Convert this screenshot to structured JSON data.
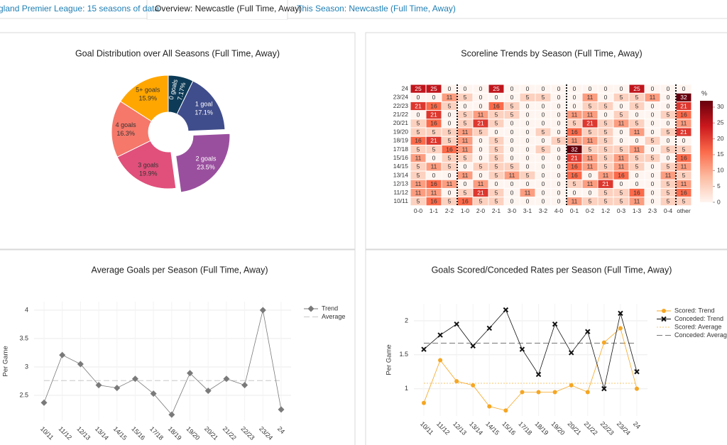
{
  "tabs": [
    "gland Premier League: 15 seasons of data",
    "Overview: Newcastle (Full Time, Away)",
    "This Season: Newcastle (Full Time, Away)"
  ],
  "chart_data": [
    {
      "type": "pie",
      "title": "Goal Distribution over All Seasons (Full Time, Away)",
      "categories": [
        "0 goals",
        "1 goal",
        "2 goals",
        "3 goals",
        "4 goals",
        "5+ goals"
      ],
      "values": [
        7.17,
        17.1,
        23.5,
        19.9,
        16.3,
        15.9
      ],
      "value_labels": [
        "7.17%",
        "17.1%",
        "23.5%",
        "19.9%",
        "16.3%",
        "15.9%"
      ],
      "colors": [
        "#0d3b57",
        "#404d8c",
        "#9a4f9e",
        "#e0507b",
        "#f5786a",
        "#ffa600"
      ]
    },
    {
      "type": "heatmap",
      "title": "Scoreline Trends by Season (Full Time, Away)",
      "x": [
        "0-0",
        "1-1",
        "2-2",
        "1-0",
        "2-0",
        "2-1",
        "3-0",
        "3-1",
        "3-2",
        "4-0",
        "0-1",
        "0-2",
        "1-2",
        "0-3",
        "1-3",
        "2-3",
        "0-4",
        "other"
      ],
      "y": [
        "24",
        "23/24",
        "22/23",
        "21/22",
        "20/21",
        "19/20",
        "18/19",
        "17/18",
        "15/16",
        "14/15",
        "13/14",
        "12/13",
        "11/12",
        "10/11"
      ],
      "values": [
        [
          25,
          25,
          0,
          0,
          0,
          25,
          0,
          0,
          0,
          0,
          0,
          0,
          0,
          0,
          25,
          0,
          0,
          0
        ],
        [
          0,
          0,
          11,
          5,
          0,
          0,
          0,
          5,
          5,
          0,
          0,
          11,
          0,
          5,
          5,
          11,
          0,
          32
        ],
        [
          21,
          16,
          5,
          0,
          0,
          16,
          5,
          0,
          0,
          0,
          0,
          5,
          5,
          0,
          5,
          0,
          0,
          21
        ],
        [
          0,
          21,
          0,
          5,
          11,
          5,
          5,
          0,
          0,
          0,
          11,
          11,
          0,
          5,
          0,
          0,
          5,
          16
        ],
        [
          5,
          16,
          0,
          5,
          21,
          5,
          0,
          0,
          0,
          0,
          5,
          21,
          5,
          11,
          5,
          0,
          0,
          11
        ],
        [
          5,
          5,
          5,
          11,
          5,
          0,
          0,
          0,
          5,
          0,
          16,
          5,
          5,
          0,
          11,
          0,
          5,
          21
        ],
        [
          16,
          21,
          5,
          11,
          0,
          5,
          0,
          0,
          0,
          5,
          11,
          11,
          5,
          0,
          0,
          5,
          0,
          0
        ],
        [
          5,
          5,
          16,
          11,
          0,
          5,
          0,
          0,
          5,
          0,
          32,
          5,
          5,
          5,
          11,
          0,
          5,
          5
        ],
        [
          11,
          0,
          5,
          5,
          0,
          5,
          0,
          0,
          0,
          0,
          21,
          11,
          5,
          11,
          5,
          5,
          0,
          16
        ],
        [
          5,
          11,
          5,
          0,
          5,
          5,
          5,
          0,
          0,
          0,
          16,
          11,
          5,
          11,
          5,
          0,
          5,
          11
        ],
        [
          5,
          0,
          0,
          11,
          0,
          5,
          11,
          5,
          0,
          0,
          16,
          0,
          11,
          16,
          0,
          0,
          11,
          5
        ],
        [
          11,
          16,
          11,
          0,
          11,
          0,
          0,
          0,
          0,
          0,
          5,
          11,
          21,
          0,
          0,
          0,
          5,
          11
        ],
        [
          11,
          11,
          0,
          5,
          21,
          5,
          0,
          11,
          0,
          0,
          0,
          0,
          5,
          5,
          16,
          0,
          5,
          16
        ],
        [
          5,
          16,
          5,
          16,
          5,
          5,
          0,
          0,
          0,
          0,
          11,
          5,
          5,
          5,
          11,
          0,
          5,
          5
        ]
      ],
      "colorbar_title": "%",
      "zlim": [
        0,
        32
      ],
      "zticks": [
        0,
        5,
        10,
        15,
        20,
        25,
        30
      ]
    },
    {
      "type": "line",
      "title": "Average Goals per Season (Full Time, Away)",
      "ylabel": "Per Game",
      "categories": [
        "10/11",
        "11/12",
        "12/13",
        "13/14",
        "14/15",
        "15/16",
        "17/18",
        "18/19",
        "19/20",
        "20/21",
        "21/22",
        "22/23",
        "23/24",
        "24"
      ],
      "ylim": [
        2.05,
        4.15
      ],
      "yticks": [
        2.5,
        3,
        3.5,
        4
      ],
      "series": [
        {
          "name": "Trend",
          "color": "#7a7a7a",
          "marker": "diamond",
          "values": [
            2.37,
            3.21,
            3.05,
            2.68,
            2.63,
            2.79,
            2.53,
            2.16,
            2.89,
            2.58,
            2.79,
            2.68,
            4.0,
            2.25
          ]
        }
      ],
      "averages": [
        {
          "name": "Average",
          "color": "#c8c8c8",
          "value": 2.76
        }
      ]
    },
    {
      "type": "line",
      "title": "Goals Scored/Conceded Rates per Season (Full Time, Away)",
      "ylabel": "Per Game",
      "categories": [
        "10/11",
        "11/12",
        "12/13",
        "13/14",
        "14/15",
        "15/16",
        "17/18",
        "18/19",
        "19/20",
        "20/21",
        "21/22",
        "22/23",
        "23/24",
        "24"
      ],
      "ylim": [
        0.6,
        2.25
      ],
      "yticks": [
        1,
        1.5,
        2
      ],
      "series": [
        {
          "name": "Scored: Trend",
          "color": "#f5a623",
          "marker": "circle",
          "values": [
            0.79,
            1.42,
            1.11,
            1.05,
            0.74,
            0.68,
            0.95,
            0.95,
            0.95,
            1.05,
            0.95,
            1.68,
            1.89,
            1.0
          ]
        },
        {
          "name": "Conceded: Trend",
          "color": "#111111",
          "marker": "x",
          "values": [
            1.58,
            1.79,
            1.95,
            1.63,
            1.89,
            2.16,
            1.58,
            1.21,
            1.95,
            1.53,
            1.84,
            1.0,
            2.11,
            1.25
          ]
        }
      ],
      "averages": [
        {
          "name": "Scored: Average",
          "color": "#f8c66e",
          "value": 1.08
        },
        {
          "name": "Conceded: Average",
          "color": "#777777",
          "value": 1.67
        }
      ]
    }
  ]
}
